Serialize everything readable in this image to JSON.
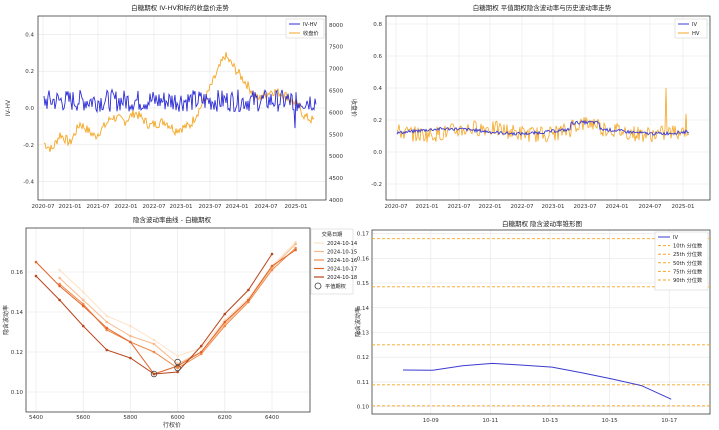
{
  "colors": {
    "iv": "#2b2bd6",
    "close": "#f5a623",
    "iv_line": "#3b3bd0",
    "hv": "#f5a623",
    "red_axis": "#d62728",
    "blue_axis": "#1f77b4",
    "smile": [
      "#fde2c7",
      "#f8b98a",
      "#ef8a4a",
      "#e0642a",
      "#b8461d"
    ],
    "pct": "#f5a623"
  },
  "charts": [
    {
      "id": "p1",
      "type": "line",
      "title": "白糖期权 IV-HV和标的收盘价走势",
      "ylabel": "IV-HV",
      "y2label": "收盘价",
      "xticks": [
        "2020-07",
        "2021-01",
        "2021-07",
        "2022-01",
        "2022-07",
        "2023-01",
        "2023-07",
        "2024-01",
        "2024-07",
        "2025-01"
      ],
      "yticks": [
        "0.4",
        "0.2",
        "0.0",
        "-0.2",
        "-0.4"
      ],
      "y2ticks": [
        "8000",
        "7500",
        "7000",
        "6500",
        "6000",
        "5500",
        "5000",
        "4500",
        "4000"
      ],
      "legend": [
        "IV-HV",
        "收盘价"
      ]
    },
    {
      "id": "p2",
      "type": "line",
      "title": "白糖期权 平值期权隐含波动率与历史波动率走势",
      "xticks": [
        "2020-07",
        "2021-01",
        "2021-07",
        "2022-01",
        "2022-07",
        "2023-01",
        "2023-07",
        "2024-01",
        "2024-07",
        "2025-01"
      ],
      "yticks": [
        "0.8",
        "0.6",
        "0.4",
        "0.2",
        "0.0",
        "-0.2"
      ],
      "legend": [
        "IV",
        "HV"
      ]
    },
    {
      "id": "p3",
      "type": "line",
      "title": "隐含波动率曲线 - 白糖期权",
      "xlabel": "行权价",
      "ylabel": "隐含波动率",
      "xticks": [
        "5400",
        "5600",
        "5800",
        "6000",
        "6200",
        "6400"
      ],
      "yticks": [
        "0.16",
        "0.14",
        "0.12",
        "0.10"
      ],
      "legend_title": "交易日期",
      "legend": [
        "2024-10-14",
        "2024-10-15",
        "2024-10-16",
        "2024-10-17",
        "2024-10-18"
      ],
      "atm_label": "平值期权",
      "series": [
        {
          "name": "2024-10-14",
          "strikes": [
            5500,
            5600,
            5700,
            5800,
            5900,
            6000,
            6100,
            6200,
            6300,
            6400,
            6500
          ],
          "values": [
            0.161,
            0.15,
            0.138,
            0.133,
            0.126,
            0.118,
            0.122,
            0.136,
            0.147,
            0.163,
            0.175
          ]
        },
        {
          "name": "2024-10-15",
          "strikes": [
            5500,
            5600,
            5700,
            5800,
            5900,
            6000,
            6100,
            6200,
            6300,
            6400,
            6500
          ],
          "values": [
            0.157,
            0.146,
            0.135,
            0.128,
            0.124,
            0.114,
            0.12,
            0.134,
            0.146,
            0.162,
            0.174
          ]
        },
        {
          "name": "2024-10-16",
          "strikes": [
            5500,
            5600,
            5700,
            5800,
            5900,
            6000,
            6100,
            6200,
            6300,
            6400,
            6500
          ],
          "values": [
            0.154,
            0.144,
            0.131,
            0.125,
            0.12,
            0.112,
            0.119,
            0.133,
            0.145,
            0.161,
            0.172
          ]
        },
        {
          "name": "2024-10-17",
          "strikes": [
            5400,
            5500,
            5600,
            5700,
            5800,
            5900,
            6000,
            6100,
            6200,
            6300,
            6400,
            6500
          ],
          "values": [
            0.165,
            0.153,
            0.143,
            0.132,
            0.125,
            0.109,
            0.113,
            0.12,
            0.135,
            0.146,
            0.163,
            0.171
          ]
        },
        {
          "name": "2024-10-18",
          "strikes": [
            5400,
            5500,
            5600,
            5700,
            5800,
            5900,
            6000,
            6100,
            6200,
            6300,
            6400
          ],
          "values": [
            0.158,
            0.146,
            0.133,
            0.121,
            0.117,
            0.109,
            0.11,
            0.123,
            0.139,
            0.151,
            0.169
          ]
        }
      ]
    },
    {
      "id": "p4",
      "type": "line",
      "title": "白糖期权 隐含波动率锥形图",
      "ylabel": "隐含波动率",
      "xticks": [
        "10-09",
        "10-11",
        "10-13",
        "10-15",
        "10-17"
      ],
      "yticks": [
        "0.17",
        "0.16",
        "0.15",
        "0.14",
        "0.13",
        "0.12",
        "0.11",
        "0.10"
      ],
      "legend": [
        "IV",
        "10th 分位数",
        "25th 分位数",
        "50th 分位数",
        "75th 分位数",
        "90th 分位数"
      ],
      "iv": {
        "x": [
          0,
          1,
          2,
          3,
          4,
          5,
          6,
          7,
          8,
          9
        ],
        "values": [
          0.1148,
          0.1147,
          0.1165,
          0.1175,
          0.1168,
          0.116,
          0.1137,
          0.1112,
          0.1085,
          0.103
        ]
      },
      "percentiles": [
        0.1003,
        0.1088,
        0.125,
        0.1485,
        0.168
      ]
    }
  ]
}
